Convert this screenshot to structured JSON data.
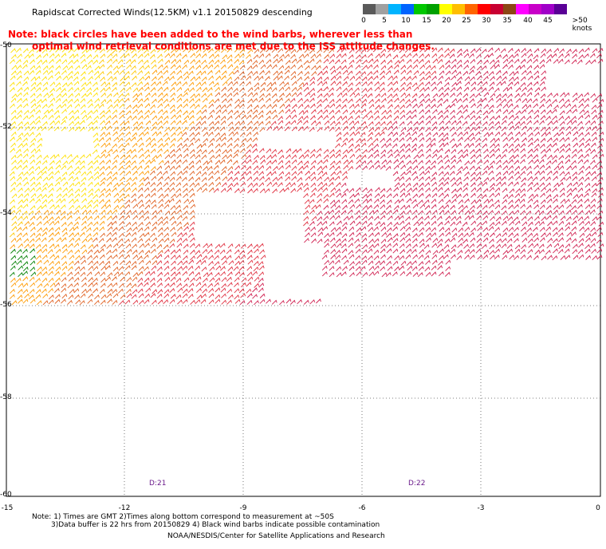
{
  "header": {
    "title": "Rapidscat Corrected Winds(12.5KM) v1.1 20150829 descending"
  },
  "note": {
    "line1": "Note: black circles have been added to the wind barbs, wherever less than",
    "line2": "optimal wind retrieval conditions are met due to the ISS attitude changes."
  },
  "legend": {
    "labels": [
      "0",
      "5",
      "10",
      "15",
      "20",
      "25",
      "30",
      "35",
      "40",
      "45",
      ">50 knots"
    ],
    "colors": [
      "#5a5a5a",
      "#a0a0a0",
      "#00b4ff",
      "#0064ff",
      "#00c800",
      "#ffff00",
      "#ffbe00",
      "#ff6400",
      "#ff0000",
      "#c80032",
      "#8c4614",
      "#ff00ff",
      "#a000c8",
      "#5a0096"
    ]
  },
  "map": {
    "lat_labels": [
      "-50",
      "-52",
      "-54",
      "-56",
      "-58",
      "-60"
    ],
    "lon_labels": [
      "-15",
      "-12",
      "-9",
      "-6",
      "-3",
      "0"
    ],
    "time_labels": [
      "D:21",
      "D:22"
    ]
  },
  "footer": {
    "line1": "Note: 1) Times are GMT 2)Times along bottom correspond to measurement at ~50S",
    "line2": "3)Data buffer is 22 hrs from 20150829 4) Black wind barbs indicate possible contamination",
    "credit": "NOAA/NESDIS/Center for Satellite Applications and Research"
  }
}
